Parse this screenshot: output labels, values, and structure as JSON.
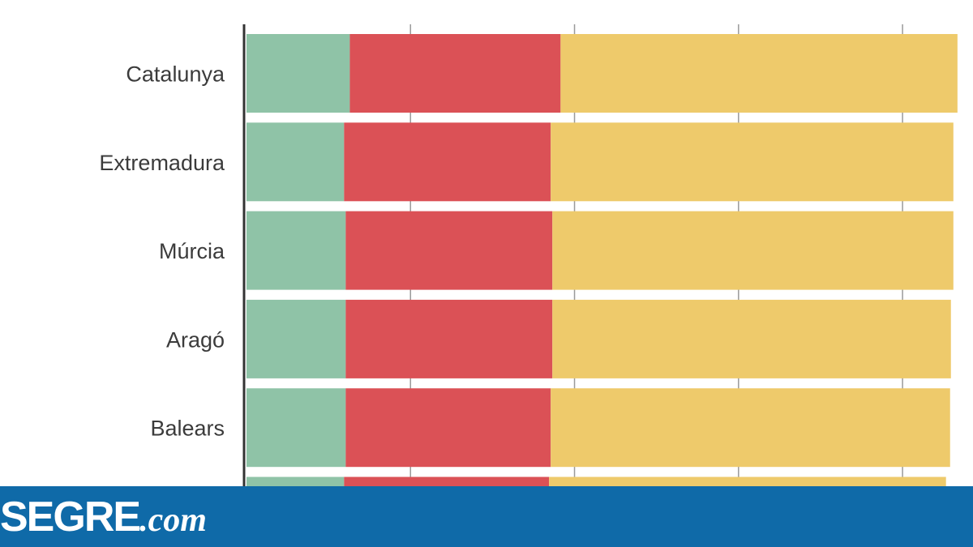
{
  "chart_data": {
    "type": "bar",
    "orientation": "horizontal",
    "stacked": true,
    "categories": [
      "Catalunya",
      "Extremadura",
      "Múrcia",
      "Aragó",
      "Balears",
      ""
    ],
    "series": [
      {
        "values": [
          12.6,
          11.9,
          12.1,
          12.1,
          12.1,
          11.9
        ],
        "color": "#8fc3a7"
      },
      {
        "values": [
          25.7,
          25.2,
          25.2,
          25.2,
          25.0,
          25.0
        ],
        "color": "#db5156"
      },
      {
        "values": [
          48.4,
          49.1,
          48.9,
          48.6,
          48.7,
          48.4
        ],
        "color": "#eeca6b"
      }
    ],
    "xlim": [
      0,
      88
    ],
    "x_gridlines": [
      20,
      40,
      60,
      80
    ],
    "grid": true,
    "legend": "none",
    "last_category_partially_visible": true
  },
  "brand": {
    "main": "SEGRE",
    "suffix": ".com",
    "bar_color": "#0f6aa8"
  }
}
